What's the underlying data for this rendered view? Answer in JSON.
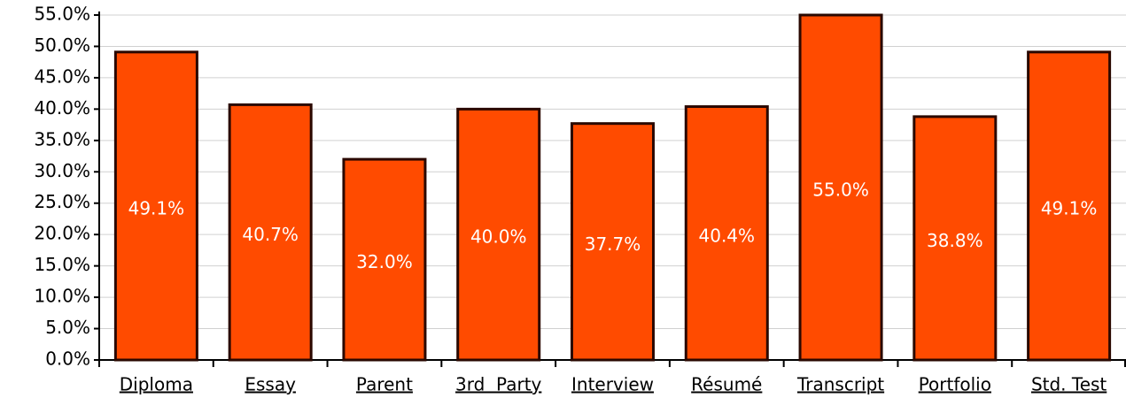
{
  "chart_data": {
    "type": "bar",
    "categories": [
      "Diploma",
      "Essay",
      "Parent",
      "3rd  Party",
      "Interview",
      "Résumé",
      "Transcript",
      "Portfolio",
      "Std. Test"
    ],
    "values": [
      49.1,
      40.7,
      32.0,
      40.0,
      37.7,
      40.4,
      55.0,
      38.8,
      49.1
    ],
    "value_labels": [
      "49.1%",
      "40.7%",
      "32.0%",
      "40.0%",
      "37.7%",
      "40.4%",
      "55.0%",
      "38.8%",
      "49.1%"
    ],
    "color": "#ff4b00",
    "ylim": [
      0,
      55
    ],
    "yticks": [
      {
        "value": 0,
        "label": "0.0%"
      },
      {
        "value": 5,
        "label": "5.0%"
      },
      {
        "value": 10,
        "label": "10.0%"
      },
      {
        "value": 15,
        "label": "15.0%"
      },
      {
        "value": 20,
        "label": "20.0%"
      },
      {
        "value": 25,
        "label": "25.0%"
      },
      {
        "value": 30,
        "label": "30.0%"
      },
      {
        "value": 35,
        "label": "35.0%"
      },
      {
        "value": 40,
        "label": "40.0%"
      },
      {
        "value": 45,
        "label": "45.0%"
      },
      {
        "value": 50,
        "label": "50.0%"
      },
      {
        "value": 55,
        "label": "55.0%"
      }
    ],
    "grid": true
  }
}
